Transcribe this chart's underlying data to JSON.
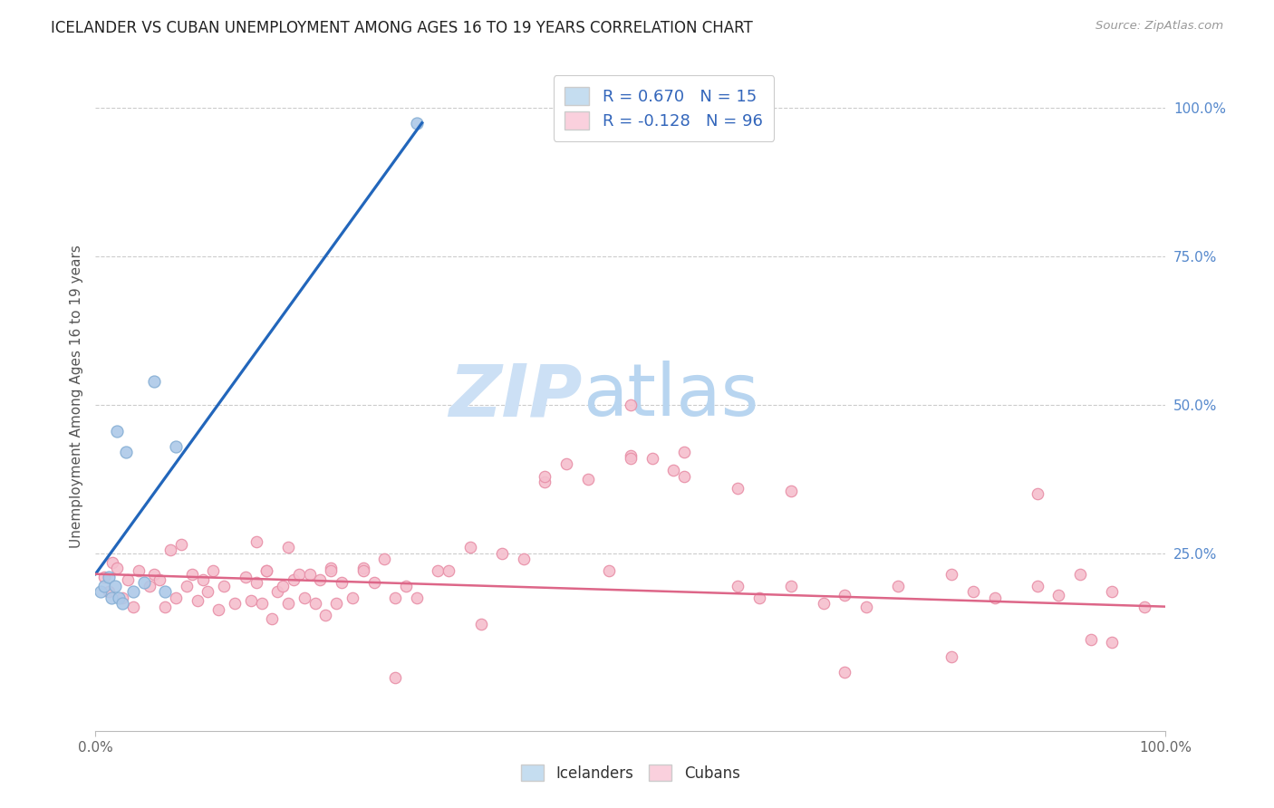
{
  "title": "ICELANDER VS CUBAN UNEMPLOYMENT AMONG AGES 16 TO 19 YEARS CORRELATION CHART",
  "source_text": "Source: ZipAtlas.com",
  "ylabel": "Unemployment Among Ages 16 to 19 years",
  "xlim": [
    0,
    1.0
  ],
  "ylim": [
    -0.05,
    1.08
  ],
  "xtick_vals": [
    0.0,
    1.0
  ],
  "xtick_labels": [
    "0.0%",
    "100.0%"
  ],
  "ytick_vals": [
    0.25,
    0.5,
    0.75,
    1.0
  ],
  "ytick_labels_right": [
    "25.0%",
    "50.0%",
    "75.0%",
    "100.0%"
  ],
  "icelander_color": "#adc9e8",
  "icelander_edge_color": "#85aed4",
  "cuban_color": "#f5bfce",
  "cuban_edge_color": "#e890a8",
  "icelander_line_color": "#2266bb",
  "cuban_line_color": "#dd6688",
  "legend_icelander_fill": "#c5ddf0",
  "legend_cuban_fill": "#fad0dd",
  "legend_border": "#cccccc",
  "R_icelander": 0.67,
  "N_icelander": 15,
  "R_cuban": -0.128,
  "N_cuban": 96,
  "watermark_zip_color": "#cce0f5",
  "watermark_atlas_color": "#b8d5f0",
  "grid_color": "#cccccc",
  "icelander_x": [
    0.005,
    0.008,
    0.012,
    0.015,
    0.018,
    0.02,
    0.022,
    0.025,
    0.028,
    0.035,
    0.045,
    0.055,
    0.065,
    0.075,
    0.3
  ],
  "icelander_y": [
    0.185,
    0.195,
    0.21,
    0.175,
    0.195,
    0.455,
    0.175,
    0.165,
    0.42,
    0.185,
    0.2,
    0.54,
    0.185,
    0.43,
    0.975
  ],
  "icelander_trend_x": [
    0.0,
    0.305
  ],
  "icelander_trend_y": [
    0.215,
    0.975
  ],
  "cuban_trend_x": [
    0.0,
    1.0
  ],
  "cuban_trend_y": [
    0.215,
    0.16
  ],
  "cuban_x": [
    0.008,
    0.012,
    0.016,
    0.02,
    0.025,
    0.03,
    0.035,
    0.04,
    0.05,
    0.055,
    0.06,
    0.065,
    0.07,
    0.075,
    0.08,
    0.085,
    0.09,
    0.095,
    0.1,
    0.105,
    0.11,
    0.115,
    0.12,
    0.13,
    0.14,
    0.145,
    0.15,
    0.155,
    0.16,
    0.165,
    0.17,
    0.175,
    0.18,
    0.185,
    0.19,
    0.195,
    0.2,
    0.205,
    0.21,
    0.215,
    0.22,
    0.225,
    0.23,
    0.24,
    0.25,
    0.26,
    0.27,
    0.28,
    0.29,
    0.3,
    0.32,
    0.35,
    0.38,
    0.4,
    0.42,
    0.44,
    0.46,
    0.5,
    0.52,
    0.54,
    0.6,
    0.62,
    0.65,
    0.68,
    0.7,
    0.72,
    0.75,
    0.8,
    0.82,
    0.84,
    0.88,
    0.9,
    0.92,
    0.95,
    0.98,
    0.15,
    0.16,
    0.18,
    0.22,
    0.25,
    0.28,
    0.33,
    0.36,
    0.42,
    0.48,
    0.5,
    0.55,
    0.6,
    0.65,
    0.7,
    0.8,
    0.88,
    0.93,
    0.95,
    0.5,
    0.55
  ],
  "cuban_y": [
    0.21,
    0.185,
    0.235,
    0.225,
    0.175,
    0.205,
    0.16,
    0.22,
    0.195,
    0.215,
    0.205,
    0.16,
    0.255,
    0.175,
    0.265,
    0.195,
    0.215,
    0.17,
    0.205,
    0.185,
    0.22,
    0.155,
    0.195,
    0.165,
    0.21,
    0.17,
    0.2,
    0.165,
    0.22,
    0.14,
    0.185,
    0.195,
    0.165,
    0.205,
    0.215,
    0.175,
    0.215,
    0.165,
    0.205,
    0.145,
    0.225,
    0.165,
    0.2,
    0.175,
    0.225,
    0.2,
    0.24,
    0.175,
    0.195,
    0.175,
    0.22,
    0.26,
    0.25,
    0.24,
    0.37,
    0.4,
    0.375,
    0.415,
    0.41,
    0.39,
    0.195,
    0.175,
    0.195,
    0.165,
    0.18,
    0.16,
    0.195,
    0.215,
    0.185,
    0.175,
    0.195,
    0.18,
    0.215,
    0.185,
    0.16,
    0.27,
    0.22,
    0.26,
    0.22,
    0.22,
    0.04,
    0.22,
    0.13,
    0.38,
    0.22,
    0.5,
    0.38,
    0.36,
    0.355,
    0.05,
    0.075,
    0.35,
    0.105,
    0.1,
    0.41,
    0.42
  ]
}
